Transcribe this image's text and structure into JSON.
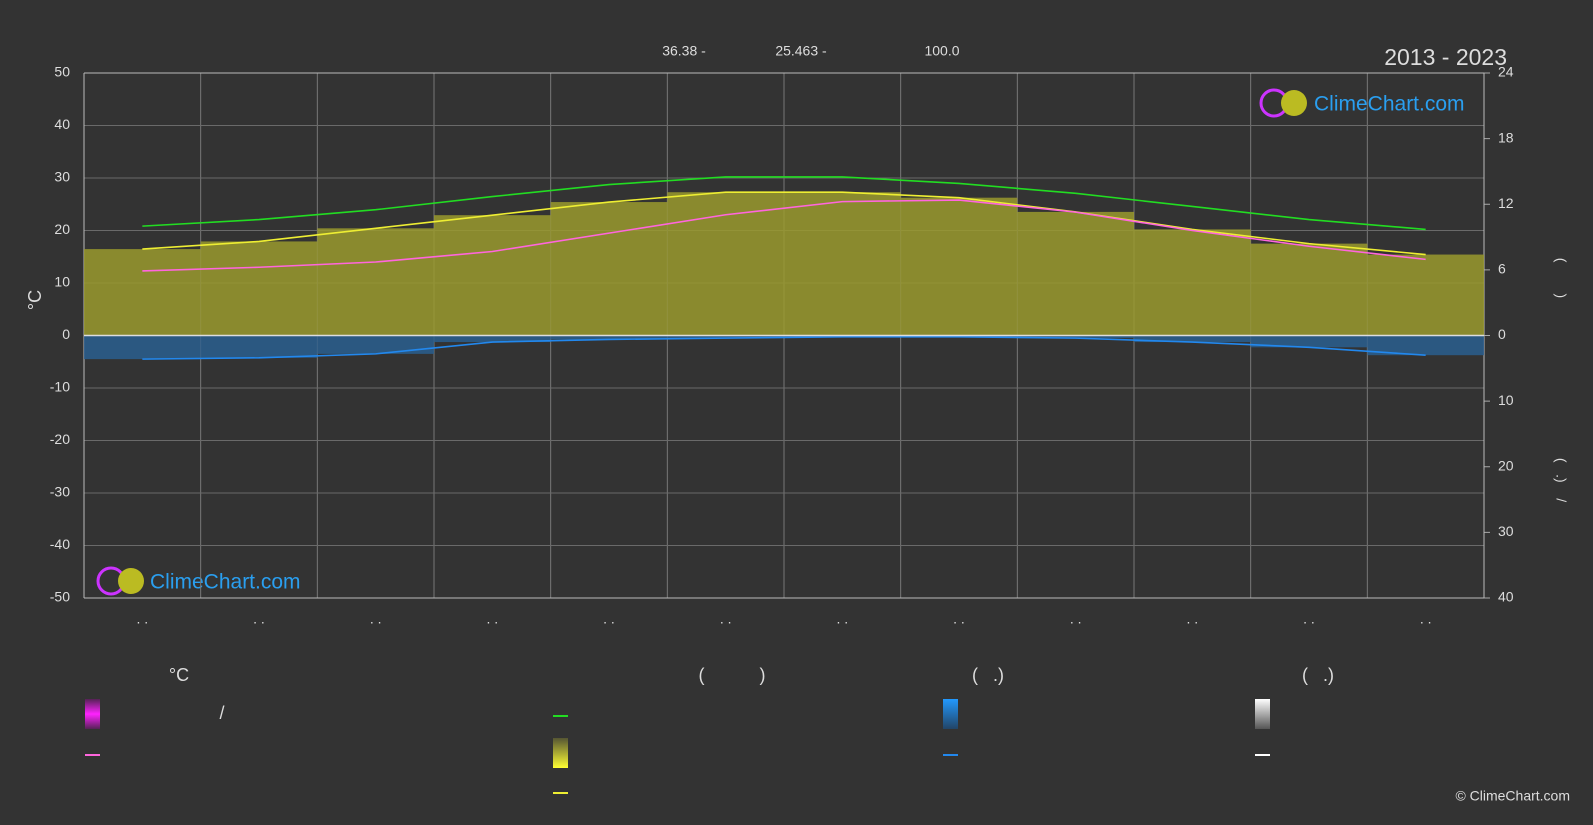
{
  "chart_data": {
    "type": "line",
    "title": "2013 - 2023",
    "header_values": [
      "36.38 -",
      "25.463 -",
      "100.0"
    ],
    "ylabel": "°C",
    "y2label": "(        )",
    "y3label": "(   .)    /",
    "watermark": "ClimeChart.com",
    "copyright": "© ClimeChart.com",
    "categories": [
      ". .",
      ". .",
      ". .",
      ". .",
      ". .",
      ". .",
      ". .",
      ". .",
      ". .",
      ". .",
      ". .",
      ". ."
    ],
    "ylim": [
      -50,
      50
    ],
    "yticks": [
      -50,
      -40,
      -30,
      -20,
      -10,
      0,
      10,
      20,
      30,
      40,
      50
    ],
    "y2lim": [
      0,
      24
    ],
    "y2ticks": [
      0,
      6,
      12,
      18,
      24
    ],
    "y3lim": [
      0,
      40
    ],
    "y3ticks": [
      10,
      20,
      30,
      40
    ],
    "grid": true,
    "series": [
      {
        "color": "#22dd22",
        "axis": "y2",
        "values": [
          10.0,
          10.6,
          11.5,
          12.7,
          13.8,
          14.5,
          14.5,
          13.9,
          13.0,
          11.8,
          10.6,
          9.7
        ]
      },
      {
        "color": "#eeee33",
        "axis": "y2",
        "fill": "#9a9a2e",
        "values": [
          7.9,
          8.6,
          9.8,
          11.0,
          12.2,
          13.1,
          13.1,
          12.6,
          11.3,
          9.7,
          8.4,
          7.4
        ]
      },
      {
        "color": "#ff66dd",
        "axis": "y",
        "values": [
          12.3,
          13.0,
          14.0,
          16.0,
          19.5,
          23.0,
          25.5,
          25.8,
          23.5,
          20.0,
          17.0,
          14.5
        ]
      },
      {
        "color": "#2288ee",
        "axis": "y3",
        "fill": "#2a5f8f",
        "values": [
          3.6,
          3.4,
          2.8,
          1.0,
          0.6,
          0.4,
          0.2,
          0.2,
          0.4,
          1.0,
          1.8,
          3.0
        ]
      }
    ],
    "legend": {
      "headers": [
        "°C",
        "(           )",
        "(   .)",
        "(   .)"
      ],
      "slash": "/"
    }
  }
}
